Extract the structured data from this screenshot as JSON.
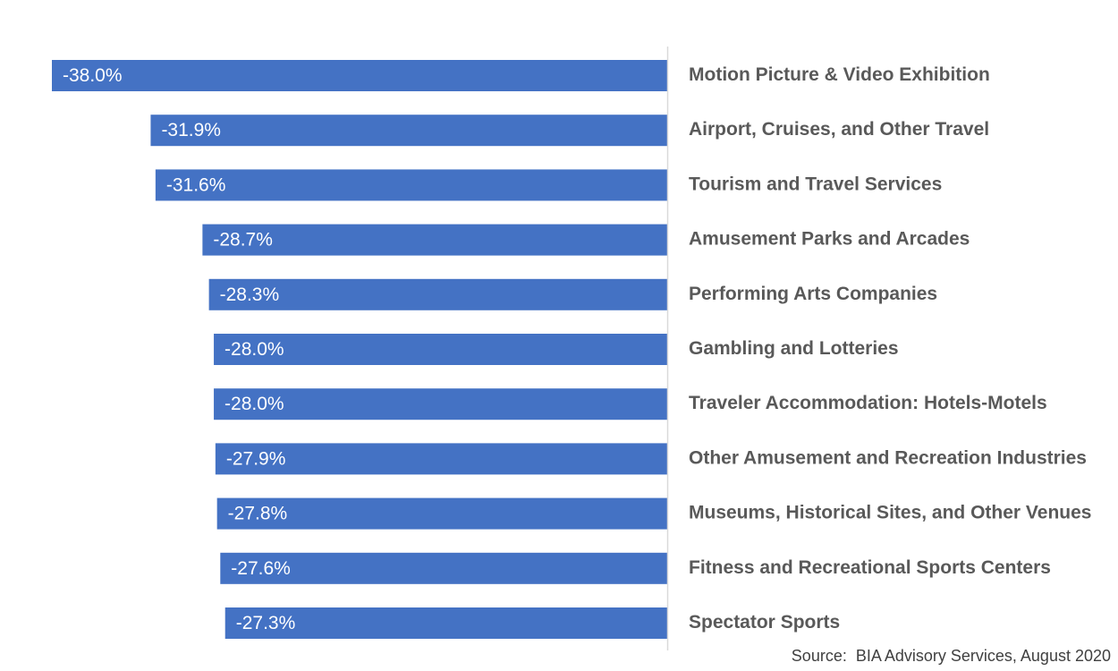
{
  "chart_data": {
    "type": "bar",
    "orientation": "horizontal",
    "categories": [
      "Motion Picture & Video Exhibition",
      "Airport, Cruises, and Other Travel",
      "Tourism and Travel Services",
      "Amusement Parks and Arcades",
      "Performing Arts Companies",
      "Gambling and Lotteries",
      "Traveler Accommodation: Hotels-Motels",
      "Other Amusement and Recreation Industries",
      "Museums, Historical Sites, and Other Venues",
      "Fitness and Recreational Sports Centers",
      "Spectator Sports"
    ],
    "values": [
      -38.0,
      -31.9,
      -31.6,
      -28.7,
      -28.3,
      -28.0,
      -28.0,
      -27.9,
      -27.8,
      -27.6,
      -27.3
    ],
    "value_labels": [
      "-38.0%",
      "-31.9%",
      "-31.6%",
      "-28.7%",
      "-28.3%",
      "-28.0%",
      "-28.0%",
      "-27.9%",
      "-27.8%",
      "-27.6%",
      "-27.3%"
    ],
    "unit": "%",
    "xlim": [
      -38.0,
      0
    ],
    "grid": false,
    "legend": "none",
    "bar_color": "#4472C4",
    "axis_color": "#D9D9D9"
  },
  "source": "Source:  BIA Advisory Services, August 2020"
}
